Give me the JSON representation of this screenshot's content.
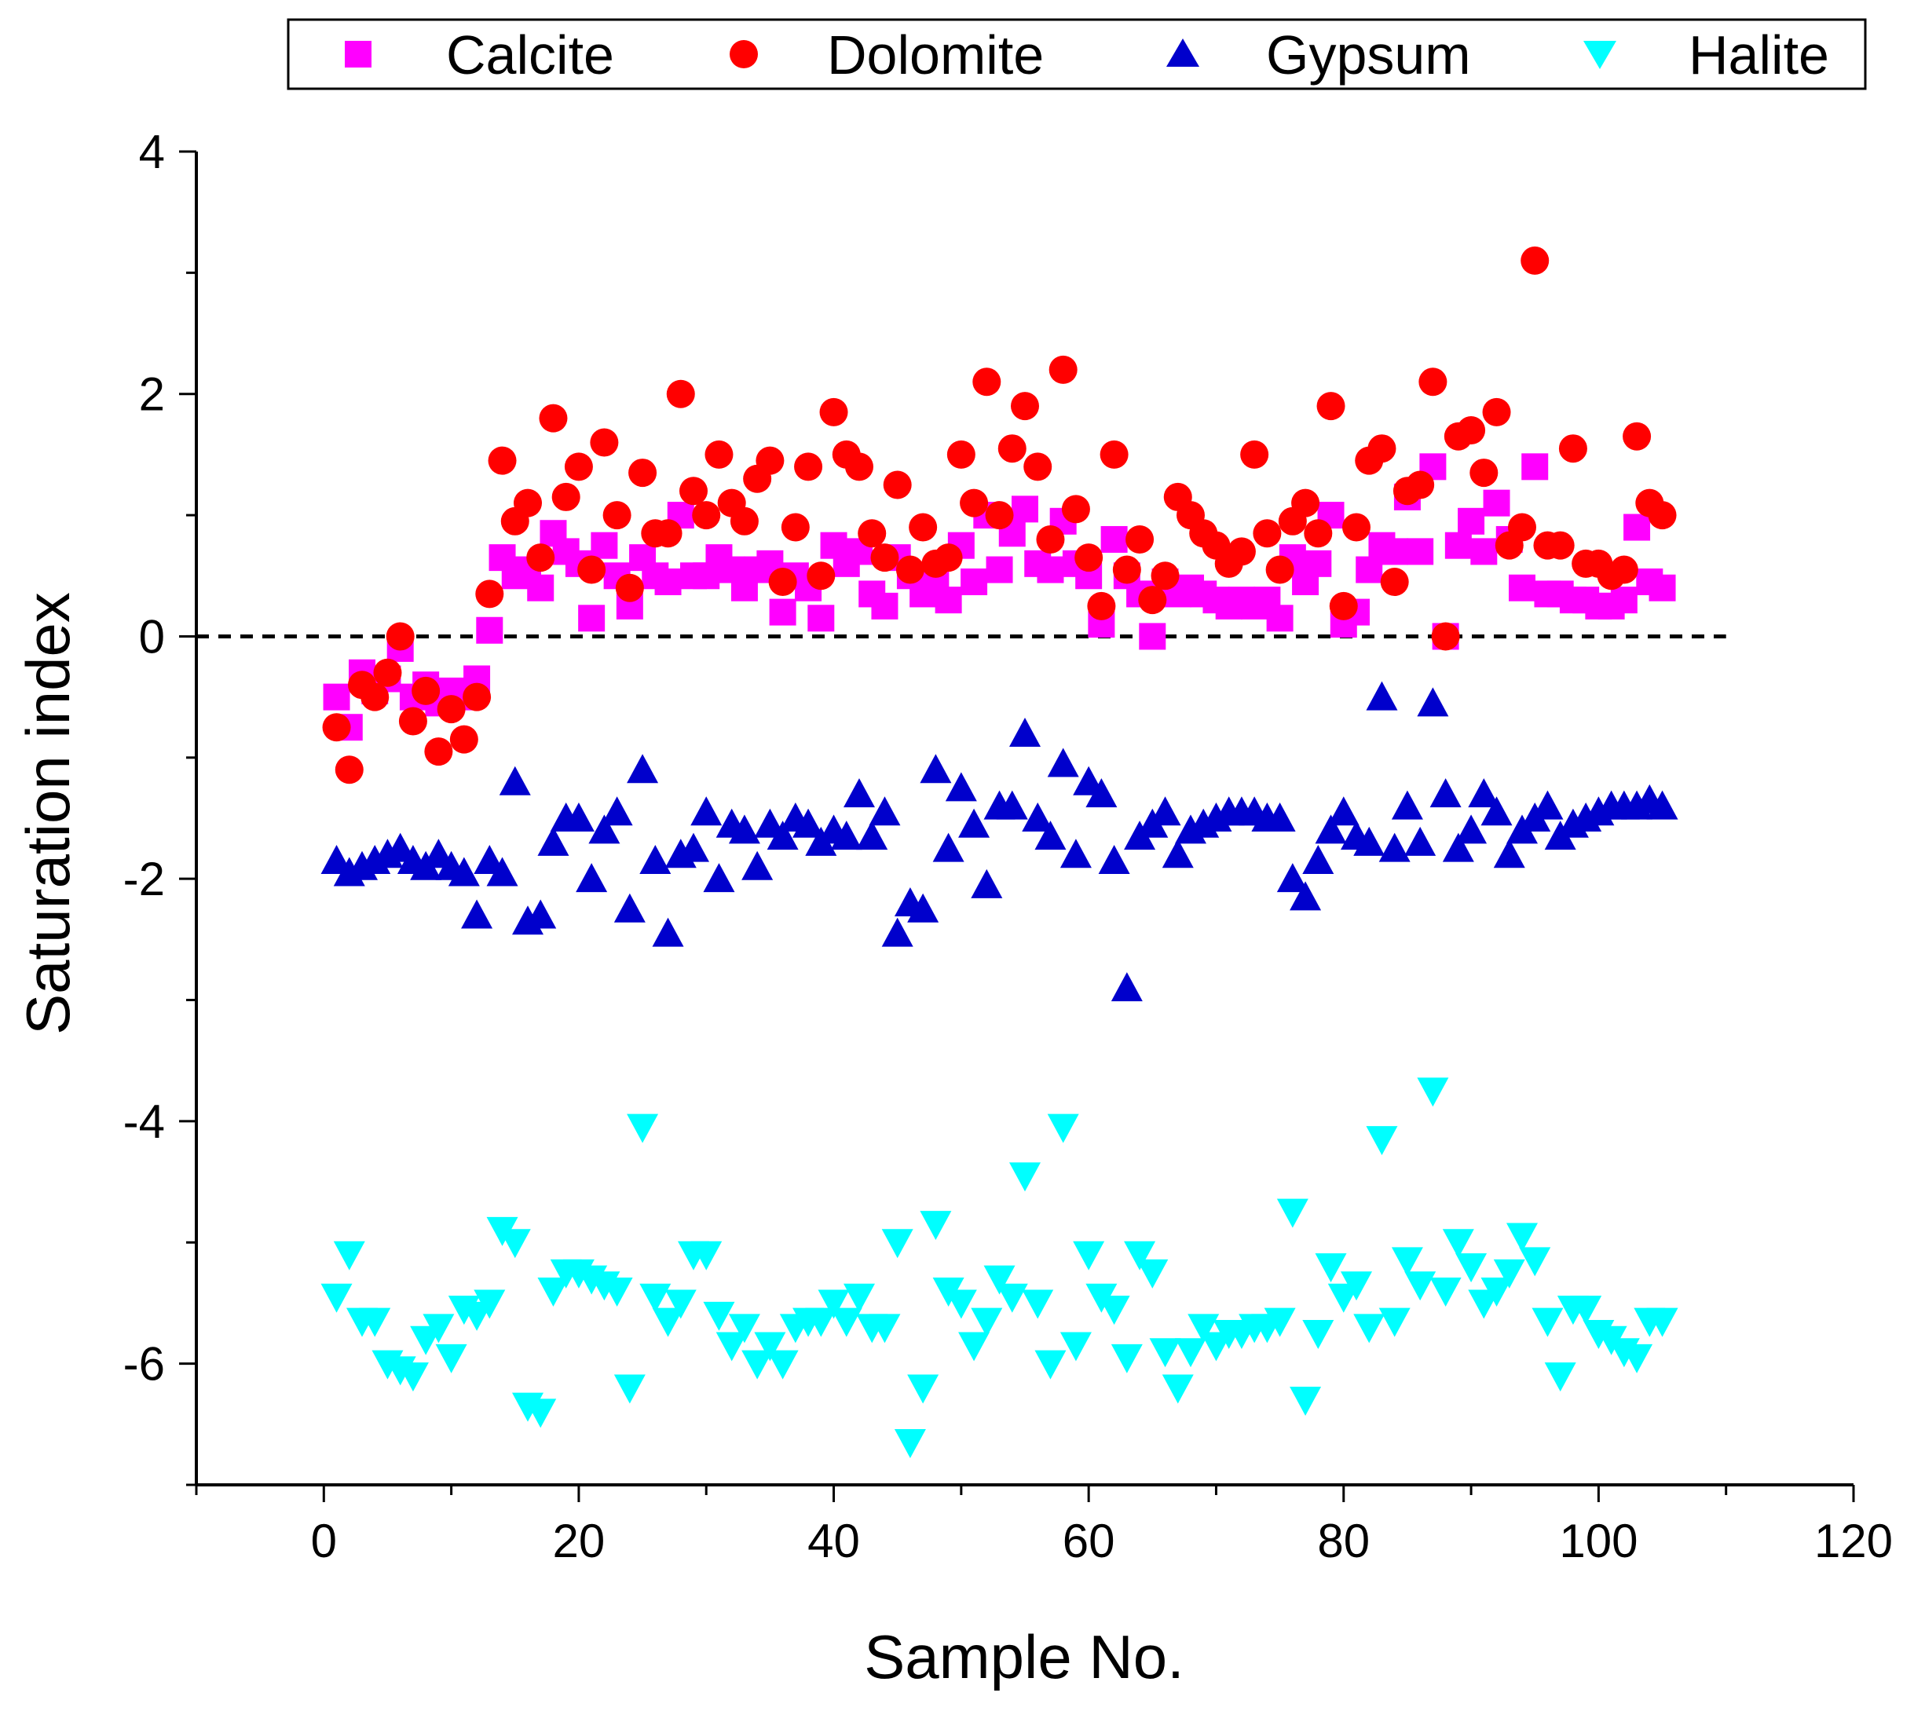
{
  "chart_data": {
    "type": "scatter",
    "xlabel": "Sample No.",
    "ylabel": "Saturation index",
    "xlim": [
      -10,
      120
    ],
    "ylim": [
      -7,
      4
    ],
    "xticks": [
      0,
      20,
      40,
      60,
      80,
      100,
      120
    ],
    "yticks": [
      -6,
      -4,
      -2,
      0,
      2,
      4
    ],
    "reference_line": {
      "y": 0,
      "style": "dashed",
      "x_range": [
        -10,
        110
      ]
    },
    "legend_position": "top",
    "series": [
      {
        "name": "Calcite",
        "marker": "square",
        "color": "#ff00ff",
        "x": [
          1,
          2,
          3,
          4,
          5,
          6,
          7,
          8,
          9,
          10,
          11,
          12,
          13,
          14,
          15,
          16,
          17,
          18,
          19,
          20,
          21,
          22,
          23,
          24,
          25,
          26,
          27,
          28,
          29,
          30,
          31,
          32,
          33,
          34,
          35,
          36,
          37,
          38,
          39,
          40,
          41,
          42,
          43,
          44,
          45,
          46,
          47,
          48,
          49,
          50,
          51,
          52,
          53,
          54,
          55,
          56,
          57,
          58,
          59,
          60,
          61,
          62,
          63,
          64,
          65,
          66,
          67,
          68,
          69,
          70,
          71,
          72,
          73,
          74,
          75,
          76,
          77,
          78,
          79,
          80,
          81,
          82,
          83,
          84,
          85,
          86,
          87,
          88,
          89,
          90,
          91,
          92,
          93,
          94,
          95,
          96,
          97,
          98,
          99,
          100,
          101,
          102,
          103,
          104,
          105
        ],
        "y": [
          -0.5,
          -0.75,
          -0.3,
          -0.45,
          -0.35,
          -0.1,
          -0.5,
          -0.4,
          -0.55,
          -0.45,
          -0.5,
          -0.35,
          0.05,
          0.65,
          0.5,
          0.55,
          0.4,
          0.85,
          0.7,
          0.6,
          0.15,
          0.75,
          0.5,
          0.25,
          0.65,
          0.5,
          0.45,
          1.0,
          0.5,
          0.5,
          0.65,
          0.55,
          0.4,
          0.55,
          0.6,
          0.2,
          0.5,
          0.4,
          0.15,
          0.75,
          0.6,
          0.7,
          0.35,
          0.25,
          0.65,
          0.5,
          0.35,
          0.45,
          0.3,
          0.75,
          0.45,
          1.0,
          0.55,
          0.85,
          1.05,
          0.6,
          0.55,
          0.95,
          0.6,
          0.5,
          0.1,
          0.8,
          0.5,
          0.35,
          0.0,
          0.45,
          0.35,
          0.4,
          0.35,
          0.3,
          0.25,
          0.3,
          0.25,
          0.3,
          0.15,
          0.65,
          0.45,
          0.6,
          1.0,
          0.1,
          0.2,
          0.55,
          0.75,
          0.7,
          1.15,
          0.7,
          1.4,
          0.0,
          0.75,
          0.95,
          0.7,
          1.1,
          0.8,
          0.4,
          1.4,
          0.35,
          0.35,
          0.3,
          0.3,
          0.25,
          0.25,
          0.3,
          0.9,
          0.45,
          0.4
        ]
      },
      {
        "name": "Dolomite",
        "marker": "circle",
        "color": "#ff0000",
        "x": [
          1,
          2,
          3,
          4,
          5,
          6,
          7,
          8,
          9,
          10,
          11,
          12,
          13,
          14,
          15,
          16,
          17,
          18,
          19,
          20,
          21,
          22,
          23,
          24,
          25,
          26,
          27,
          28,
          29,
          30,
          31,
          32,
          33,
          34,
          35,
          36,
          37,
          38,
          39,
          40,
          41,
          42,
          43,
          44,
          45,
          46,
          47,
          48,
          49,
          50,
          51,
          52,
          53,
          54,
          55,
          56,
          57,
          58,
          59,
          60,
          61,
          62,
          63,
          64,
          65,
          66,
          67,
          68,
          69,
          70,
          71,
          72,
          73,
          74,
          75,
          76,
          77,
          78,
          79,
          80,
          81,
          82,
          83,
          84,
          85,
          86,
          87,
          88,
          89,
          90,
          91,
          92,
          93,
          94,
          95,
          96,
          97,
          98,
          99,
          100,
          101,
          102,
          103,
          104,
          105
        ],
        "y": [
          -0.75,
          -1.1,
          -0.4,
          -0.5,
          -0.3,
          0.0,
          -0.7,
          -0.45,
          -0.95,
          -0.6,
          -0.85,
          -0.5,
          0.35,
          1.45,
          0.95,
          1.1,
          0.65,
          1.8,
          1.15,
          1.4,
          0.55,
          1.6,
          1.0,
          0.4,
          1.35,
          0.85,
          0.85,
          2.0,
          1.2,
          1.0,
          1.5,
          1.1,
          0.95,
          1.3,
          1.45,
          0.45,
          0.9,
          1.4,
          0.5,
          1.85,
          1.5,
          1.4,
          0.85,
          0.65,
          1.25,
          0.55,
          0.9,
          0.6,
          0.65,
          1.5,
          1.1,
          2.1,
          1.0,
          1.55,
          1.9,
          1.4,
          0.8,
          2.2,
          1.05,
          0.65,
          0.25,
          1.5,
          0.55,
          0.8,
          0.3,
          0.5,
          1.15,
          1.0,
          0.85,
          0.75,
          0.6,
          0.7,
          1.5,
          0.85,
          0.55,
          0.95,
          1.1,
          0.85,
          1.9,
          0.25,
          0.9,
          1.45,
          1.55,
          0.45,
          1.2,
          1.25,
          2.1,
          0.0,
          1.65,
          1.7,
          1.35,
          1.85,
          0.75,
          0.9,
          3.1,
          0.75,
          0.75,
          1.55,
          0.6,
          0.6,
          0.5,
          0.55,
          1.65,
          1.1,
          1.0
        ]
      },
      {
        "name": "Gypsum",
        "marker": "triangle-up",
        "color": "#0000cc",
        "x": [
          1,
          2,
          3,
          4,
          5,
          6,
          7,
          8,
          9,
          10,
          11,
          12,
          13,
          14,
          15,
          16,
          17,
          18,
          19,
          20,
          21,
          22,
          23,
          24,
          25,
          26,
          27,
          28,
          29,
          30,
          31,
          32,
          33,
          34,
          35,
          36,
          37,
          38,
          39,
          40,
          41,
          42,
          43,
          44,
          45,
          46,
          47,
          48,
          49,
          50,
          51,
          52,
          53,
          54,
          55,
          56,
          57,
          58,
          59,
          60,
          61,
          62,
          63,
          64,
          65,
          66,
          67,
          68,
          69,
          70,
          71,
          72,
          73,
          74,
          75,
          76,
          77,
          78,
          79,
          80,
          81,
          82,
          83,
          84,
          85,
          86,
          87,
          88,
          89,
          90,
          91,
          92,
          93,
          94,
          95,
          96,
          97,
          98,
          99,
          100,
          101,
          102,
          103,
          104,
          105
        ],
        "y": [
          -1.85,
          -1.95,
          -1.9,
          -1.85,
          -1.8,
          -1.75,
          -1.85,
          -1.9,
          -1.8,
          -1.9,
          -1.95,
          -2.3,
          -1.85,
          -1.95,
          -1.2,
          -2.35,
          -2.3,
          -1.7,
          -1.5,
          -1.5,
          -2.0,
          -1.6,
          -1.45,
          -2.25,
          -1.1,
          -1.85,
          -2.45,
          -1.8,
          -1.75,
          -1.45,
          -2.0,
          -1.55,
          -1.6,
          -1.9,
          -1.55,
          -1.65,
          -1.5,
          -1.55,
          -1.7,
          -1.6,
          -1.65,
          -1.3,
          -1.65,
          -1.45,
          -2.45,
          -2.2,
          -2.25,
          -1.1,
          -1.75,
          -1.25,
          -1.55,
          -2.05,
          -1.4,
          -1.4,
          -0.8,
          -1.5,
          -1.65,
          -1.05,
          -1.8,
          -1.2,
          -1.3,
          -1.85,
          -2.9,
          -1.65,
          -1.55,
          -1.45,
          -1.8,
          -1.6,
          -1.55,
          -1.5,
          -1.45,
          -1.45,
          -1.45,
          -1.5,
          -1.5,
          -2.0,
          -2.15,
          -1.85,
          -1.6,
          -1.45,
          -1.65,
          -1.7,
          -0.5,
          -1.75,
          -1.4,
          -1.7,
          -0.55,
          -1.3,
          -1.75,
          -1.6,
          -1.3,
          -1.45,
          -1.8,
          -1.6,
          -1.5,
          -1.4,
          -1.65,
          -1.55,
          -1.5,
          -1.45,
          -1.4,
          -1.4,
          -1.4,
          -1.35,
          -1.4
        ]
      },
      {
        "name": "Halite",
        "marker": "triangle-down",
        "color": "#00ffff",
        "x": [
          1,
          2,
          3,
          4,
          5,
          6,
          7,
          8,
          9,
          10,
          11,
          12,
          13,
          14,
          15,
          16,
          17,
          18,
          19,
          20,
          21,
          22,
          23,
          24,
          25,
          26,
          27,
          28,
          29,
          30,
          31,
          32,
          33,
          34,
          35,
          36,
          37,
          38,
          39,
          40,
          41,
          42,
          43,
          44,
          45,
          46,
          47,
          48,
          49,
          50,
          51,
          52,
          53,
          54,
          55,
          56,
          57,
          58,
          59,
          60,
          61,
          62,
          63,
          64,
          65,
          66,
          67,
          68,
          69,
          70,
          71,
          72,
          73,
          74,
          75,
          76,
          77,
          78,
          79,
          80,
          81,
          82,
          83,
          84,
          85,
          86,
          87,
          88,
          89,
          90,
          91,
          92,
          93,
          94,
          95,
          96,
          97,
          98,
          99,
          100,
          101,
          102,
          103,
          104,
          105
        ],
        "y": [
          -5.45,
          -5.1,
          -5.65,
          -5.65,
          -6.0,
          -6.05,
          -6.1,
          -5.8,
          -5.7,
          -5.95,
          -5.55,
          -5.6,
          -5.5,
          -4.9,
          -5.0,
          -6.35,
          -6.4,
          -5.4,
          -5.25,
          -5.25,
          -5.3,
          -5.35,
          -5.4,
          -6.2,
          -4.05,
          -5.45,
          -5.65,
          -5.5,
          -5.1,
          -5.1,
          -5.6,
          -5.85,
          -5.7,
          -6.0,
          -5.85,
          -6.0,
          -5.7,
          -5.65,
          -5.65,
          -5.5,
          -5.65,
          -5.45,
          -5.7,
          -5.7,
          -5.0,
          -6.65,
          -6.2,
          -4.85,
          -5.4,
          -5.5,
          -5.85,
          -5.65,
          -5.3,
          -5.45,
          -4.45,
          -5.5,
          -6.0,
          -4.05,
          -5.85,
          -5.1,
          -5.45,
          -5.55,
          -5.95,
          -5.1,
          -5.25,
          -5.9,
          -6.2,
          -5.9,
          -5.7,
          -5.85,
          -5.75,
          -5.75,
          -5.7,
          -5.7,
          -5.65,
          -4.75,
          -6.3,
          -5.75,
          -5.2,
          -5.45,
          -5.35,
          -5.7,
          -4.15,
          -5.65,
          -5.15,
          -5.35,
          -3.75,
          -5.4,
          -5.0,
          -5.2,
          -5.5,
          -5.4,
          -5.25,
          -4.95,
          -5.15,
          -5.65,
          -6.1,
          -5.55,
          -5.55,
          -5.75,
          -5.8,
          -5.9,
          -5.95,
          -5.65,
          -5.65
        ]
      }
    ]
  }
}
